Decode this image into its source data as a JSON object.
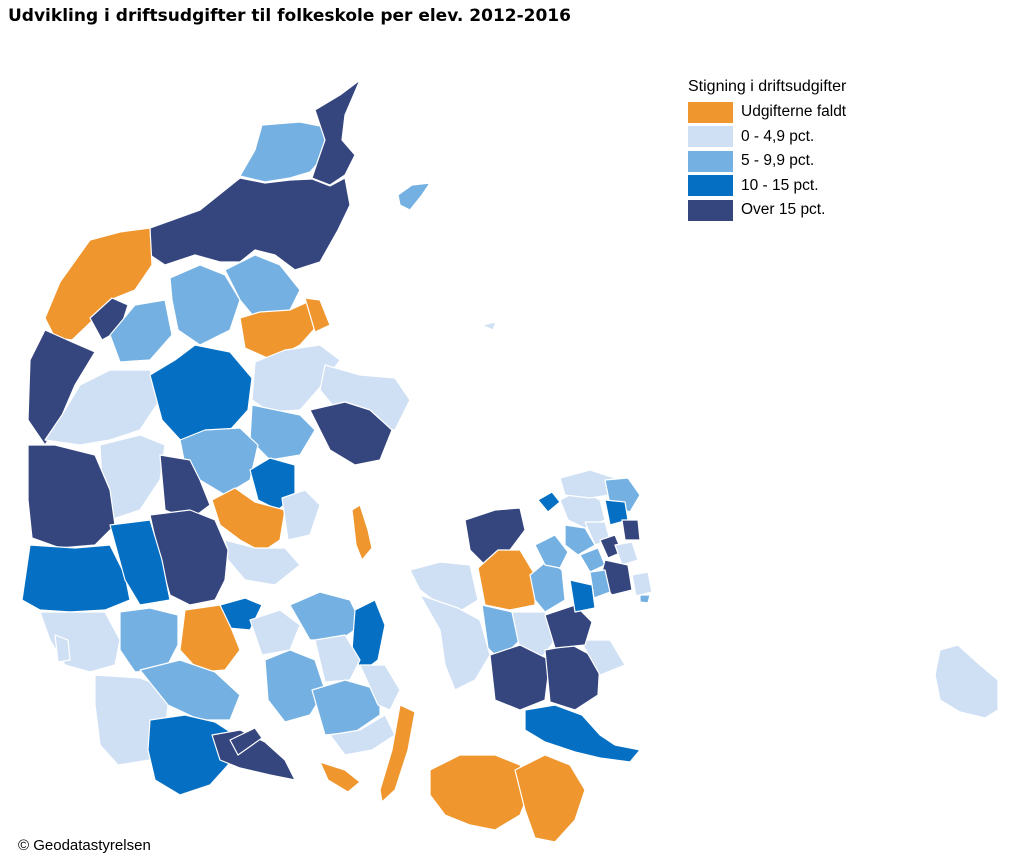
{
  "title": "Udvikling i driftsudgifter til folkeskole per elev. 2012-2016",
  "legend": {
    "title": "Stigning i driftsudgifter",
    "items": [
      {
        "label": "Udgifterne faldt",
        "color": "#f0962e"
      },
      {
        "label": "0 - 4,9 pct.",
        "color": "#cfe0f5"
      },
      {
        "label": "5 - 9,9 pct.",
        "color": "#74b1e2"
      },
      {
        "label": "10 - 15 pct.",
        "color": "#0570c3"
      },
      {
        "label": "Over 15 pct.",
        "color": "#35457e"
      }
    ]
  },
  "credit": "© Geodatastyrelsen",
  "colors": {
    "border": "#ffffff",
    "water": "#ffffff"
  }
}
